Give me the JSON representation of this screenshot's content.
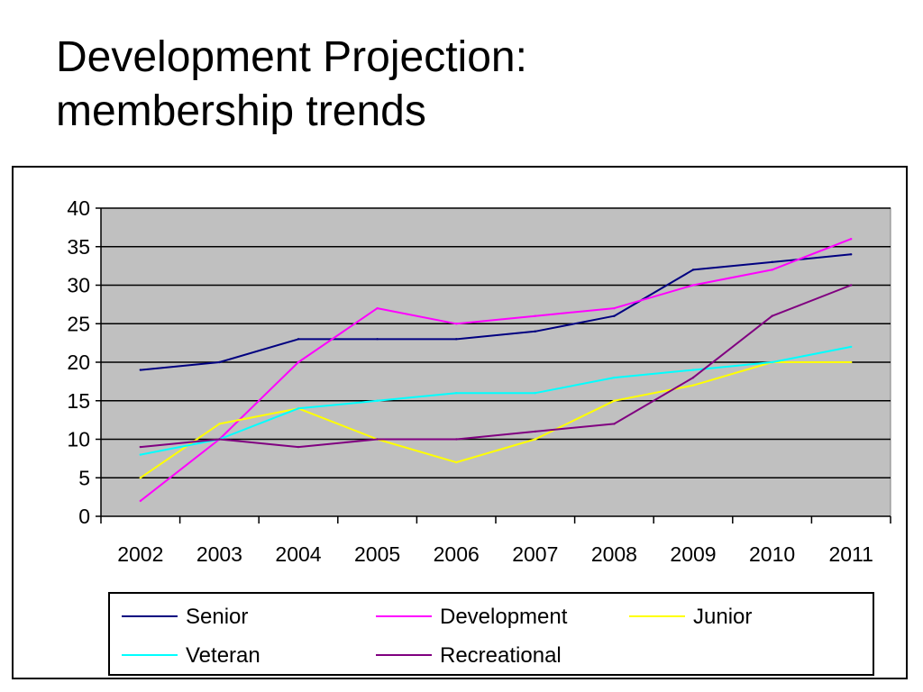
{
  "slide": {
    "title_line1": "Development Projection:",
    "title_line2": "membership trends"
  },
  "chart_data": {
    "type": "line",
    "categories": [
      "2002",
      "2003",
      "2004",
      "2005",
      "2006",
      "2007",
      "2008",
      "2009",
      "2010",
      "2011"
    ],
    "ylim": [
      0,
      40
    ],
    "yticks": [
      0,
      5,
      10,
      15,
      20,
      25,
      30,
      35,
      40
    ],
    "grid": true,
    "legend": "bottom",
    "plot_background": "#c0c0c0",
    "gridline_color": "#000000",
    "series": [
      {
        "name": "Senior",
        "color": "#000080",
        "values": [
          19,
          20,
          23,
          23,
          23,
          24,
          26,
          32,
          33,
          34
        ]
      },
      {
        "name": "Development",
        "color": "#ff00ff",
        "values": [
          2,
          10,
          20,
          27,
          25,
          26,
          27,
          30,
          32,
          36
        ]
      },
      {
        "name": "Junior",
        "color": "#ffff00",
        "values": [
          5,
          12,
          14,
          10,
          7,
          10,
          15,
          17,
          20,
          20
        ]
      },
      {
        "name": "Veteran",
        "color": "#00ffff",
        "values": [
          8,
          10,
          14,
          15,
          16,
          16,
          18,
          19,
          20,
          22
        ]
      },
      {
        "name": "Recreational",
        "color": "#800080",
        "values": [
          9,
          10,
          9,
          10,
          10,
          11,
          12,
          18,
          26,
          30
        ]
      }
    ]
  }
}
